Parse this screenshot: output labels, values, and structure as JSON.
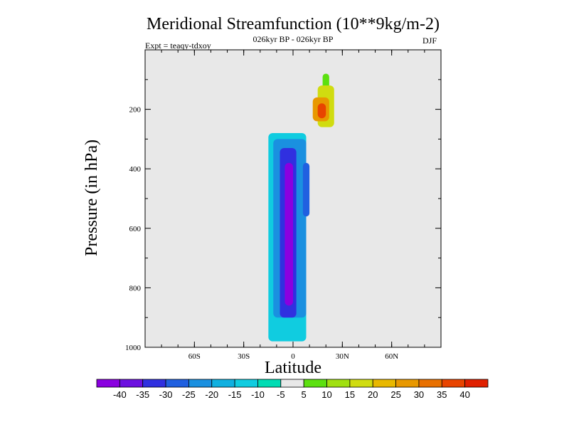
{
  "chart_data": {
    "type": "contour",
    "title": "Meridional Streamfunction (10**9kg/m-2)",
    "subtitle": "026kyr BP - 026kyr BP",
    "left_note": "Expt = teaqy-tdxoy",
    "right_note": "DJF",
    "xlabel": "Latitude",
    "ylabel": "Pressure (in hPa)",
    "xlim": [
      -90,
      90
    ],
    "ylim": [
      1000,
      0
    ],
    "x_ticks": [
      {
        "value": -60,
        "label": "60S"
      },
      {
        "value": -30,
        "label": "30S"
      },
      {
        "value": 0,
        "label": "0"
      },
      {
        "value": 30,
        "label": "30N"
      },
      {
        "value": 60,
        "label": "60N"
      }
    ],
    "y_ticks": [
      {
        "value": 200,
        "label": "200"
      },
      {
        "value": 400,
        "label": "400"
      },
      {
        "value": 600,
        "label": "600"
      },
      {
        "value": 800,
        "label": "800"
      },
      {
        "value": 1000,
        "label": "1000"
      }
    ],
    "colorbar": {
      "labels": [
        "-40",
        "-35",
        "-30",
        "-25",
        "-20",
        "-15",
        "-10",
        "-5",
        "5",
        "10",
        "15",
        "20",
        "25",
        "30",
        "35",
        "40"
      ],
      "colors": [
        "#8a00e0",
        "#6c10e0",
        "#3030e0",
        "#2060e0",
        "#1a90e0",
        "#10b0e0",
        "#10cce0",
        "#00dcb4",
        "#e8e8e8",
        "#5ce010",
        "#a0e010",
        "#d0dc10",
        "#e8b800",
        "#e89800",
        "#e87000",
        "#e84400",
        "#e02000"
      ]
    },
    "regions": [
      {
        "level": 0.5,
        "lat": [
          -70,
          -65
        ],
        "p": [
          0,
          920
        ]
      },
      {
        "level": 0.5,
        "lat": [
          -50,
          -48
        ],
        "p": [
          0,
          960
        ]
      },
      {
        "level": 0.5,
        "lat": [
          -35,
          -25
        ],
        "p": [
          0,
          500
        ]
      },
      {
        "level": 0.5,
        "lat": [
          20,
          28
        ],
        "p": [
          0,
          280
        ]
      },
      {
        "level": 0.5,
        "lat": [
          32,
          38
        ],
        "p": [
          0,
          960
        ]
      },
      {
        "level": 0.5,
        "lat": [
          62,
          72
        ],
        "p": [
          0,
          960
        ]
      },
      {
        "level": -0.5,
        "lat": [
          -55,
          -40
        ],
        "p": [
          0,
          200
        ]
      },
      {
        "level": -0.5,
        "lat": [
          -35,
          -20
        ],
        "p": [
          200,
          1000
        ]
      },
      {
        "level": -0.5,
        "lat": [
          45,
          60
        ],
        "p": [
          320,
          1000
        ]
      },
      {
        "level": -0.5,
        "lat": [
          -18,
          10
        ],
        "p": [
          300,
          1000
        ]
      },
      {
        "level": -10,
        "lat": [
          -15,
          8
        ],
        "p": [
          280,
          980
        ]
      },
      {
        "level": -20,
        "lat": [
          -12,
          8
        ],
        "p": [
          300,
          900
        ]
      },
      {
        "level": -30,
        "lat": [
          -8,
          2
        ],
        "p": [
          330,
          900
        ]
      },
      {
        "level": -40,
        "lat": [
          -5,
          0
        ],
        "p": [
          380,
          860
        ]
      },
      {
        "level": -25,
        "lat": [
          6,
          10
        ],
        "p": [
          380,
          560
        ]
      },
      {
        "level": 10,
        "lat": [
          18,
          22
        ],
        "p": [
          80,
          240
        ]
      },
      {
        "level": 20,
        "lat": [
          15,
          25
        ],
        "p": [
          120,
          260
        ]
      },
      {
        "level": 30,
        "lat": [
          12,
          22
        ],
        "p": [
          160,
          240
        ]
      },
      {
        "level": 40,
        "lat": [
          15,
          20
        ],
        "p": [
          180,
          230
        ]
      }
    ]
  }
}
